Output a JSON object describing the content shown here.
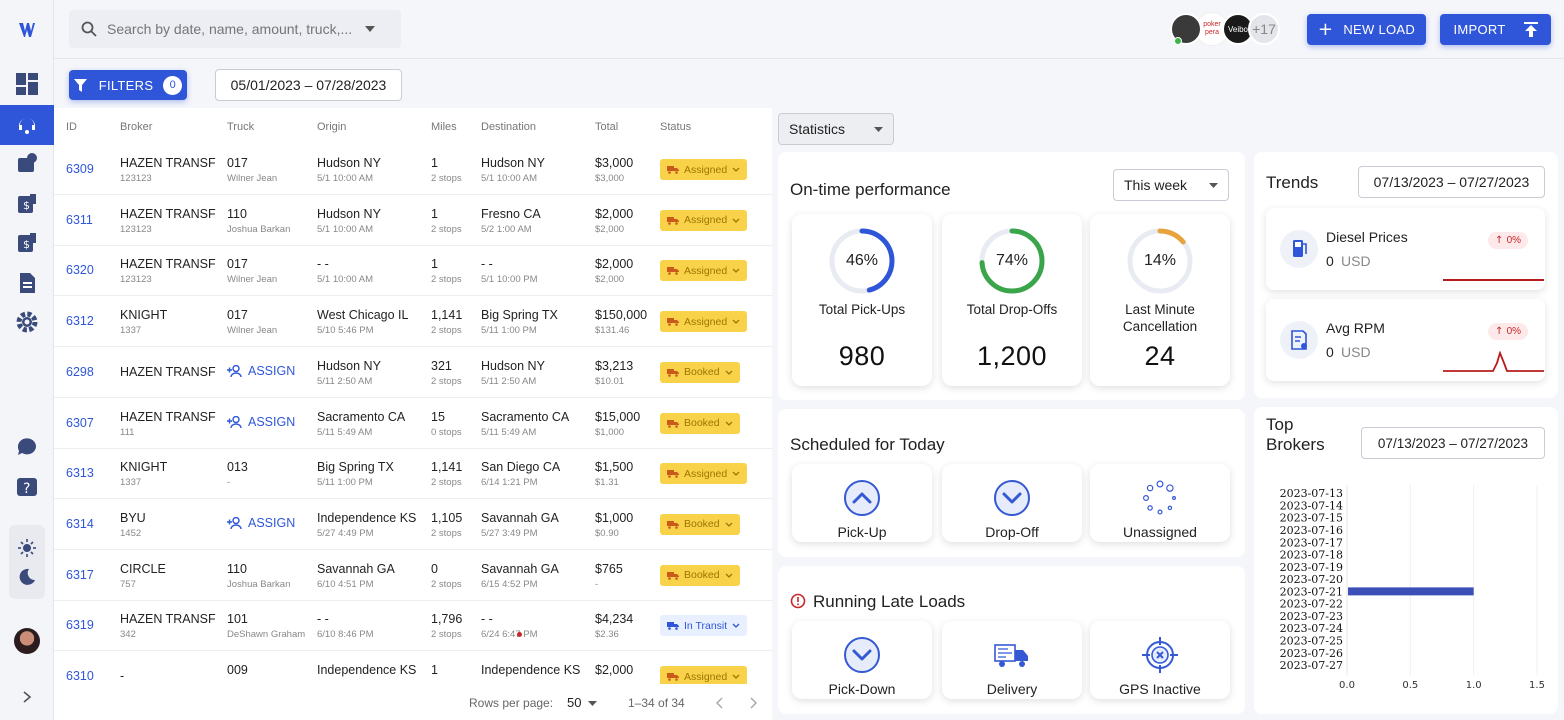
{
  "search": {
    "placeholder": "Search by date, name, amount, truck,..."
  },
  "toolbar": {
    "filters_label": "FILTERS",
    "filters_count": "0",
    "date_range": "05/01/2023 – 07/28/2023",
    "avatars_more": "+17",
    "avatar_1": "poker pera",
    "avatar_2": "Veibo",
    "new_load_label": "NEW LOAD",
    "import_label": "IMPORT"
  },
  "table": {
    "headers": [
      "ID",
      "Broker",
      "Truck",
      "Origin",
      "Miles",
      "Destination",
      "Total",
      "Status"
    ],
    "assign_label": "ASSIGN",
    "rows": [
      {
        "id": "6309",
        "broker": "HAZEN TRANSF",
        "broker_sub": "123123",
        "truck": "017",
        "truck_sub": "Wilner Jean",
        "origin": "Hudson NY",
        "origin_sub": "5/1 10:00 AM",
        "miles": "1",
        "miles_sub": "2 stops",
        "dest": "Hudson NY",
        "dest_sub": "5/1 10:00 AM",
        "total": "$3,000",
        "total_sub": "$3,000",
        "status": "Assigned"
      },
      {
        "id": "6311",
        "broker": "HAZEN TRANSF",
        "broker_sub": "123123",
        "truck": "110",
        "truck_sub": "Joshua Barkan",
        "origin": "Hudson NY",
        "origin_sub": "5/1 10:00 AM",
        "miles": "1",
        "miles_sub": "2 stops",
        "dest": "Fresno CA",
        "dest_sub": "5/2 1:00 AM",
        "total": "$2,000",
        "total_sub": "$2,000",
        "status": "Assigned"
      },
      {
        "id": "6320",
        "broker": "HAZEN TRANSF",
        "broker_sub": "123123",
        "truck": "017",
        "truck_sub": "Wilner Jean",
        "origin": "- -",
        "origin_sub": "5/1 10:00 AM",
        "miles": "1",
        "miles_sub": "2 stops",
        "dest": "- -",
        "dest_sub": "5/1 10:00 PM",
        "total": "$2,000",
        "total_sub": "$2,000",
        "status": "Assigned"
      },
      {
        "id": "6312",
        "broker": "KNIGHT",
        "broker_sub": "1337",
        "truck": "017",
        "truck_sub": "Wilner Jean",
        "origin": "West Chicago IL",
        "origin_sub": "5/10 5:46 PM",
        "miles": "1,141",
        "miles_sub": "2 stops",
        "dest": "Big Spring TX",
        "dest_sub": "5/11 1:00 PM",
        "total": "$150,000",
        "total_sub": "$131.46",
        "status": "Assigned"
      },
      {
        "id": "6298",
        "broker": "HAZEN TRANSF",
        "broker_sub": "",
        "truck": "",
        "truck_sub": "",
        "origin": "Hudson NY",
        "origin_sub": "5/11 2:50 AM",
        "miles": "321",
        "miles_sub": "2 stops",
        "dest": "Hudson NY",
        "dest_sub": "5/11 2:50 AM",
        "total": "$3,213",
        "total_sub": "$10.01",
        "status": "Booked"
      },
      {
        "id": "6307",
        "broker": "HAZEN TRANSF",
        "broker_sub": "111",
        "truck": "",
        "truck_sub": "",
        "origin": "Sacramento CA",
        "origin_sub": "5/11 5:49 AM",
        "miles": "15",
        "miles_sub": "0 stops",
        "dest": "Sacramento CA",
        "dest_sub": "5/11 5:49 AM",
        "total": "$15,000",
        "total_sub": "$1,000",
        "status": "Booked"
      },
      {
        "id": "6313",
        "broker": "KNIGHT",
        "broker_sub": "1337",
        "truck": "013",
        "truck_sub": "-",
        "origin": "Big Spring TX",
        "origin_sub": "5/11 1:00 PM",
        "miles": "1,141",
        "miles_sub": "2 stops",
        "dest": "San Diego CA",
        "dest_sub": "6/14 1:21 PM",
        "total": "$1,500",
        "total_sub": "$1.31",
        "status": "Assigned"
      },
      {
        "id": "6314",
        "broker": "BYU",
        "broker_sub": "1452",
        "truck": "",
        "truck_sub": "",
        "origin": "Independence KS",
        "origin_sub": "5/27 4:49 PM",
        "miles": "1,105",
        "miles_sub": "2 stops",
        "dest": "Savannah GA",
        "dest_sub": "5/27 3:49 PM",
        "total": "$1,000",
        "total_sub": "$0.90",
        "status": "Booked"
      },
      {
        "id": "6317",
        "broker": "CIRCLE",
        "broker_sub": "757",
        "truck": "110",
        "truck_sub": "Joshua Barkan",
        "origin": "Savannah GA",
        "origin_sub": "6/10 4:51 PM",
        "miles": "0",
        "miles_sub": "2 stops",
        "dest": "Savannah GA",
        "dest_sub": "6/15 4:52 PM",
        "total": "$765",
        "total_sub": "-",
        "status": "Booked"
      },
      {
        "id": "6319",
        "broker": "HAZEN TRANSF",
        "broker_sub": "342",
        "truck": "101",
        "truck_sub": "DeShawn Graham",
        "origin": "- -",
        "origin_sub": "6/10 8:46 PM",
        "miles": "1,796",
        "miles_sub": "2 stops",
        "dest": "- -",
        "dest_sub": "6/24 6:47 PM",
        "total": "$4,234",
        "total_sub": "$2.36",
        "status": "In Transit"
      },
      {
        "id": "6310",
        "broker": "-",
        "broker_sub": "",
        "truck": "009",
        "truck_sub": "",
        "origin": "Independence KS",
        "origin_sub": "",
        "miles": "1",
        "miles_sub": "",
        "dest": "Independence KS",
        "dest_sub": "",
        "total": "$2,000",
        "total_sub": "",
        "status": "Assigned"
      }
    ],
    "pager": {
      "rows_label": "Rows per page:",
      "rows_value": "50",
      "range": "1–34 of 34"
    }
  },
  "stats": {
    "selector": "Statistics",
    "ontime": {
      "title": "On-time performance",
      "period": "This week",
      "cards": [
        {
          "pct": "46%",
          "pct_value": 46,
          "label": "Total Pick-Ups",
          "value": "980",
          "color": "#2f56d9"
        },
        {
          "pct": "74%",
          "pct_value": 74,
          "label": "Total Drop-Offs",
          "value": "1,200",
          "color": "#3aa54a"
        },
        {
          "pct": "14%",
          "pct_value": 14,
          "label": "Last Minute Cancellation",
          "value": "24",
          "color": "#e8a33d"
        }
      ]
    },
    "scheduled": {
      "title": "Scheduled for Today",
      "cards": [
        {
          "label": "Pick-Up",
          "icon": "chevron-up-circle-icon"
        },
        {
          "label": "Drop-Off",
          "icon": "chevron-down-circle-icon"
        },
        {
          "label": "Unassigned",
          "icon": "loading-dots-icon"
        }
      ]
    },
    "late": {
      "title": "Running Late Loads",
      "cards": [
        {
          "label": "Pick-Down",
          "icon": "chevron-down-circle-icon"
        },
        {
          "label": "Delivery",
          "icon": "truck-icon"
        },
        {
          "label": "GPS Inactive",
          "icon": "gps-crosshair-icon"
        }
      ]
    },
    "trends": {
      "title": "Trends",
      "range": "07/13/2023 – 07/27/2023",
      "items": [
        {
          "name": "Diesel Prices",
          "value": "0",
          "unit": "USD",
          "change": "0%"
        },
        {
          "name": "Avg RPM",
          "value": "0",
          "unit": "USD",
          "change": "0%"
        }
      ]
    },
    "brokers": {
      "title_1": "Top",
      "title_2": "Brokers",
      "range": "07/13/2023 – 07/27/2023"
    }
  },
  "chart_data": {
    "type": "bar",
    "orientation": "horizontal",
    "categories": [
      "2023-07-13",
      "2023-07-14",
      "2023-07-15",
      "2023-07-16",
      "2023-07-17",
      "2023-07-18",
      "2023-07-19",
      "2023-07-20",
      "2023-07-21",
      "2023-07-22",
      "2023-07-23",
      "2023-07-24",
      "2023-07-25",
      "2023-07-26",
      "2023-07-27"
    ],
    "values": [
      0,
      0,
      0,
      0,
      0,
      0,
      0,
      0,
      1.0,
      0,
      0,
      0,
      0,
      0,
      0
    ],
    "xlim": [
      0,
      1.5
    ],
    "xticks": [
      "0.0",
      "0.5",
      "1.0",
      "1.5"
    ],
    "color": "#3a4fb8"
  },
  "colors": {
    "accent": "#2f56d9",
    "assigned": "#f8d34a",
    "late": "#c62828"
  }
}
